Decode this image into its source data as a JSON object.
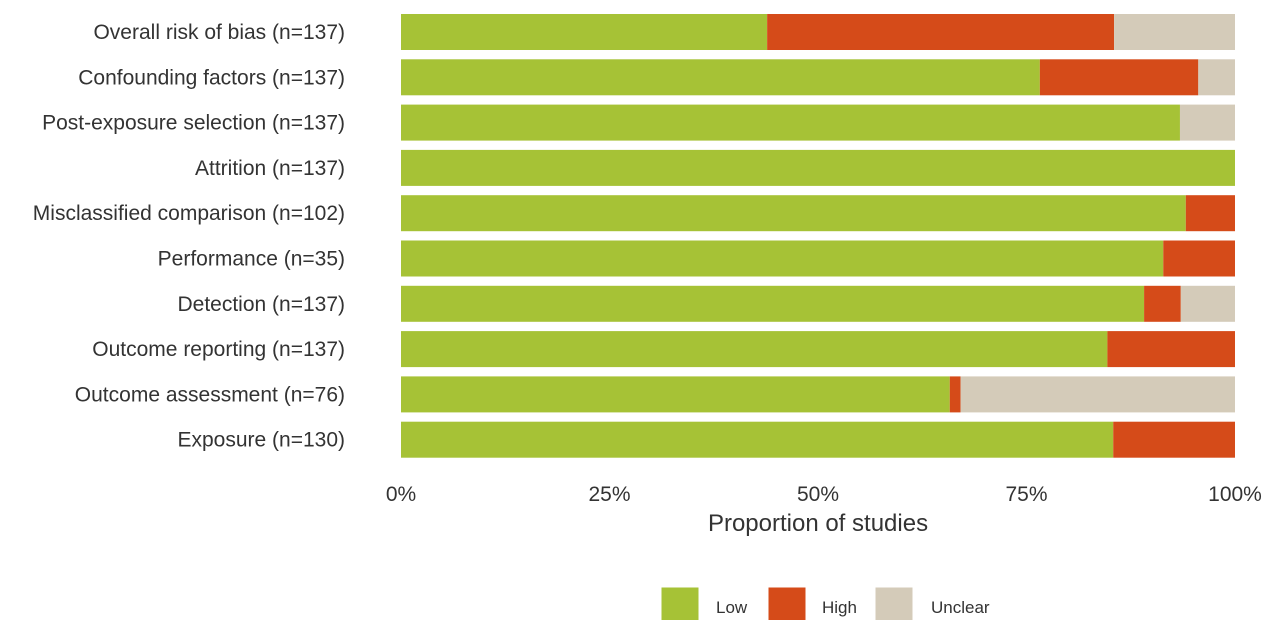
{
  "chart_data": {
    "type": "bar",
    "orientation": "horizontal",
    "stacked": true,
    "normalized": true,
    "categories": [
      "Overall risk of bias (n=137)",
      "Confounding factors (n=137)",
      "Post-exposure selection (n=137)",
      "Attrition (n=137)",
      "Misclassified comparison (n=102)",
      "Performance (n=35)",
      "Detection (n=137)",
      "Outcome reporting (n=137)",
      "Outcome assessment (n=76)",
      "Exposure (n=130)"
    ],
    "series": [
      {
        "name": "Low",
        "color": "#a6c236",
        "values": [
          43.9,
          76.6,
          93.4,
          100,
          94.1,
          91.4,
          89.1,
          84.7,
          65.8,
          85.4
        ]
      },
      {
        "name": "High",
        "color": "#d54b19",
        "values": [
          41.6,
          19.0,
          0,
          0,
          5.9,
          8.6,
          4.4,
          15.3,
          1.3,
          14.6
        ]
      },
      {
        "name": "Unclear",
        "color": "#d4cbb9",
        "values": [
          14.5,
          4.4,
          6.6,
          0,
          0,
          0,
          6.5,
          0,
          32.9,
          0
        ]
      }
    ],
    "xlabel": "Proportion of studies",
    "ylabel": "",
    "title": "",
    "xlim": [
      0,
      100
    ],
    "xticks": [
      "0%",
      "25%",
      "50%",
      "75%",
      "100%"
    ],
    "grid": false,
    "legend": "bottom"
  }
}
